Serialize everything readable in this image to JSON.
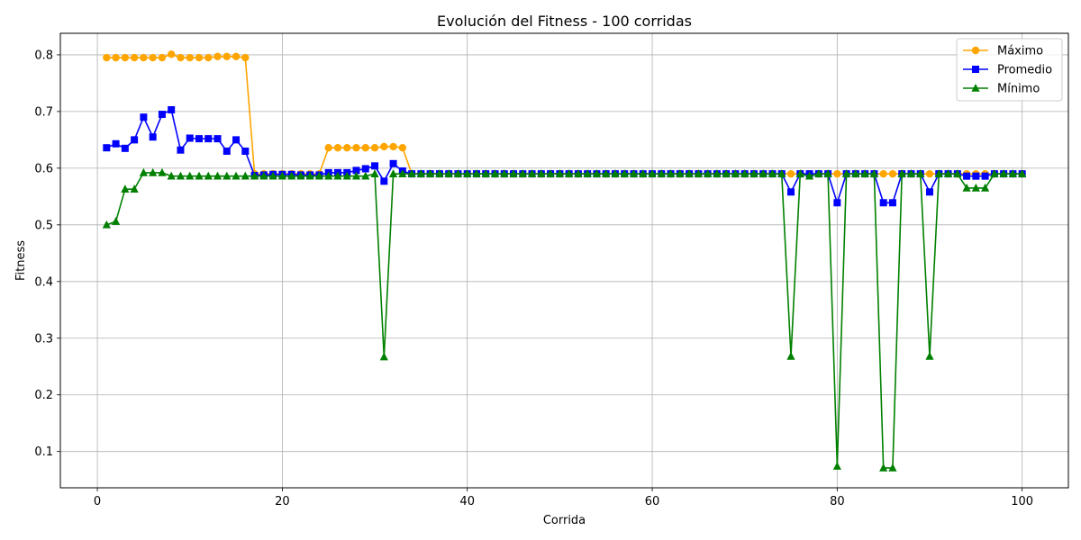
{
  "chart_data": {
    "type": "line",
    "title": "Evolución del Fitness - 100 corridas",
    "xlabel": "Corrida",
    "ylabel": "Fitness",
    "xlim": [
      -4,
      105
    ],
    "ylim": [
      0.036,
      0.838
    ],
    "xticks": [
      0,
      20,
      40,
      60,
      80,
      100
    ],
    "yticks": [
      0.1,
      0.2,
      0.3,
      0.4,
      0.5,
      0.6,
      0.7,
      0.8
    ],
    "grid": true,
    "legend_position": "top-right",
    "x": [
      1,
      2,
      3,
      4,
      5,
      6,
      7,
      8,
      9,
      10,
      11,
      12,
      13,
      14,
      15,
      16,
      17,
      18,
      19,
      20,
      21,
      22,
      23,
      24,
      25,
      26,
      27,
      28,
      29,
      30,
      31,
      32,
      33,
      34,
      35,
      36,
      37,
      38,
      39,
      40,
      41,
      42,
      43,
      44,
      45,
      46,
      47,
      48,
      49,
      50,
      51,
      52,
      53,
      54,
      55,
      56,
      57,
      58,
      59,
      60,
      61,
      62,
      63,
      64,
      65,
      66,
      67,
      68,
      69,
      70,
      71,
      72,
      73,
      74,
      75,
      76,
      77,
      78,
      79,
      80,
      81,
      82,
      83,
      84,
      85,
      86,
      87,
      88,
      89,
      90,
      91,
      92,
      93,
      94,
      95,
      96,
      97,
      98,
      99,
      100
    ],
    "series": [
      {
        "name": "Máximo",
        "color": "#ffa500",
        "marker": "circle",
        "values": [
          0.795,
          0.795,
          0.795,
          0.795,
          0.795,
          0.795,
          0.795,
          0.801,
          0.795,
          0.795,
          0.795,
          0.795,
          0.797,
          0.797,
          0.797,
          0.795,
          0.59,
          0.59,
          0.59,
          0.59,
          0.59,
          0.59,
          0.59,
          0.59,
          0.636,
          0.636,
          0.636,
          0.636,
          0.636,
          0.636,
          0.638,
          0.638,
          0.636,
          0.59,
          0.59,
          0.59,
          0.59,
          0.59,
          0.59,
          0.59,
          0.59,
          0.59,
          0.59,
          0.59,
          0.59,
          0.59,
          0.59,
          0.59,
          0.59,
          0.59,
          0.59,
          0.59,
          0.59,
          0.59,
          0.59,
          0.59,
          0.59,
          0.59,
          0.59,
          0.59,
          0.59,
          0.59,
          0.59,
          0.59,
          0.59,
          0.59,
          0.59,
          0.59,
          0.59,
          0.59,
          0.59,
          0.59,
          0.59,
          0.59,
          0.59,
          0.59,
          0.59,
          0.59,
          0.59,
          0.59,
          0.59,
          0.59,
          0.59,
          0.59,
          0.59,
          0.59,
          0.59,
          0.59,
          0.59,
          0.59,
          0.59,
          0.59,
          0.59,
          0.59,
          0.59,
          0.59,
          0.59,
          0.59,
          0.59,
          0.59
        ]
      },
      {
        "name": "Promedio",
        "color": "#0000ff",
        "marker": "square",
        "values": [
          0.636,
          0.643,
          0.635,
          0.65,
          0.69,
          0.655,
          0.695,
          0.703,
          0.632,
          0.653,
          0.652,
          0.652,
          0.652,
          0.63,
          0.65,
          0.63,
          0.587,
          0.588,
          0.589,
          0.589,
          0.589,
          0.588,
          0.588,
          0.588,
          0.592,
          0.592,
          0.592,
          0.596,
          0.599,
          0.604,
          0.577,
          0.608,
          0.595,
          0.59,
          0.59,
          0.59,
          0.59,
          0.59,
          0.59,
          0.59,
          0.59,
          0.59,
          0.59,
          0.59,
          0.59,
          0.59,
          0.59,
          0.59,
          0.59,
          0.59,
          0.59,
          0.59,
          0.59,
          0.59,
          0.59,
          0.59,
          0.59,
          0.59,
          0.59,
          0.59,
          0.59,
          0.59,
          0.59,
          0.59,
          0.59,
          0.59,
          0.59,
          0.59,
          0.59,
          0.59,
          0.59,
          0.59,
          0.59,
          0.59,
          0.558,
          0.59,
          0.59,
          0.59,
          0.59,
          0.539,
          0.59,
          0.59,
          0.59,
          0.59,
          0.539,
          0.539,
          0.59,
          0.59,
          0.59,
          0.558,
          0.59,
          0.59,
          0.59,
          0.586,
          0.586,
          0.586,
          0.59,
          0.59,
          0.59,
          0.59
        ]
      },
      {
        "name": "Mínimo",
        "color": "#008000",
        "marker": "triangle",
        "values": [
          0.5,
          0.506,
          0.563,
          0.563,
          0.592,
          0.592,
          0.592,
          0.586,
          0.586,
          0.586,
          0.586,
          0.586,
          0.586,
          0.586,
          0.586,
          0.586,
          0.586,
          0.586,
          0.586,
          0.586,
          0.586,
          0.586,
          0.586,
          0.586,
          0.586,
          0.586,
          0.586,
          0.586,
          0.586,
          0.59,
          0.267,
          0.59,
          0.59,
          0.59,
          0.59,
          0.59,
          0.59,
          0.59,
          0.59,
          0.59,
          0.59,
          0.59,
          0.59,
          0.59,
          0.59,
          0.59,
          0.59,
          0.59,
          0.59,
          0.59,
          0.59,
          0.59,
          0.59,
          0.59,
          0.59,
          0.59,
          0.59,
          0.59,
          0.59,
          0.59,
          0.59,
          0.59,
          0.59,
          0.59,
          0.59,
          0.59,
          0.59,
          0.59,
          0.59,
          0.59,
          0.59,
          0.59,
          0.59,
          0.59,
          0.268,
          0.59,
          0.586,
          0.59,
          0.59,
          0.074,
          0.59,
          0.59,
          0.59,
          0.59,
          0.071,
          0.071,
          0.59,
          0.59,
          0.59,
          0.268,
          0.59,
          0.59,
          0.59,
          0.565,
          0.565,
          0.565,
          0.59,
          0.59,
          0.59,
          0.59
        ]
      }
    ]
  }
}
